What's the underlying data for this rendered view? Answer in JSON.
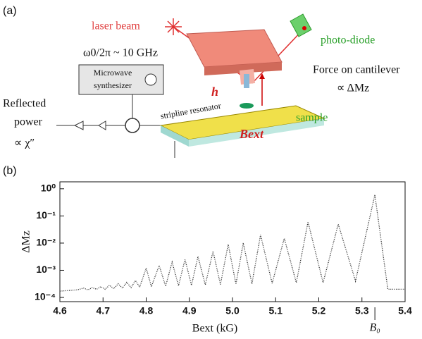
{
  "diagram": {
    "panel_a": "(a)",
    "laser": "laser beam",
    "photodiode": "photo-diode",
    "frequency": "ω0/2π ~ 10 GHz",
    "synth_line1": "Microwave",
    "synth_line2": "synthesizer",
    "force_line1": "Force on cantilever",
    "force_line2": "∝ ΔMz",
    "reflected_line1": "Reflected",
    "reflected_line2": "power",
    "reflected_line3": "∝ χ″",
    "stripline": "stripline resonator",
    "h_field": "h",
    "sample": "sample",
    "b_ext": "Bext"
  },
  "chart_data": {
    "type": "line",
    "panel": "(b)",
    "x_label": "Bext (kG)",
    "y_label": "ΔMz",
    "log_y": true,
    "color": "#222222",
    "x": [
      4.6,
      4.62,
      4.64,
      4.655,
      4.665,
      4.675,
      4.685,
      4.695,
      4.705,
      4.715,
      4.725,
      4.735,
      4.745,
      4.755,
      4.765,
      4.775,
      4.785,
      4.8,
      4.812,
      4.83,
      4.845,
      4.86,
      4.875,
      4.89,
      4.905,
      4.92,
      4.937,
      4.955,
      4.972,
      4.99,
      5.008,
      5.025,
      5.045,
      5.065,
      5.092,
      5.12,
      5.148,
      5.175,
      5.21,
      5.245,
      5.285,
      5.33,
      5.36,
      5.4
    ],
    "y": [
      0.00017,
      0.00018,
      0.00019,
      0.00022,
      0.00019,
      0.00023,
      0.0002,
      0.00025,
      0.0002,
      0.00028,
      0.00021,
      0.00032,
      0.00022,
      0.00036,
      0.00023,
      0.00042,
      0.00024,
      0.0012,
      0.00025,
      0.0015,
      0.00026,
      0.002,
      0.00027,
      0.0025,
      0.00028,
      0.0032,
      0.00029,
      0.005,
      0.0003,
      0.009,
      0.00031,
      0.01,
      0.00032,
      0.02,
      0.00033,
      0.015,
      0.00035,
      0.06,
      0.00035,
      0.05,
      0.0004,
      0.6,
      0.0002,
      0.0002
    ],
    "xlim": [
      4.6,
      5.4
    ],
    "xticks": [
      4.6,
      4.7,
      4.8,
      4.9,
      {
        "value": 5,
        "label": "5.0"
      },
      5.1,
      5.2,
      5.3,
      5.4
    ],
    "ylim": [
      7e-05,
      1.8
    ],
    "yticks": [
      {
        "value": 0.0001,
        "label": "10⁻⁴"
      },
      {
        "value": 0.001,
        "label": "10⁻³"
      },
      {
        "value": 0.01,
        "label": "10⁻²"
      },
      {
        "value": 0.1,
        "label": "10⁻¹"
      },
      {
        "value": 1,
        "label": "10⁰"
      }
    ],
    "annotation": {
      "text": "B₀",
      "x": 5.33
    }
  }
}
